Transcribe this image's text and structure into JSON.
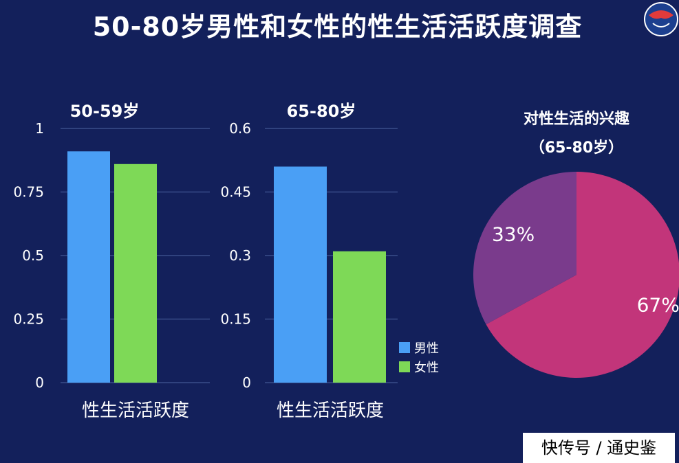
{
  "page": {
    "title": "50-80岁男性和女性的性生活活跃度调查",
    "watermark": "快传号 / 通史鉴",
    "logo_icon": "logo-emblem-icon"
  },
  "colors": {
    "background": "#13205b",
    "male": "#4a9ff5",
    "female": "#7ed957",
    "pie_large": "#c2357a",
    "pie_small": "#7a3b8c",
    "grid": "#3a4d8a"
  },
  "chart_data": [
    {
      "type": "bar",
      "title": "50-59岁",
      "xlabel": "性生活活跃度",
      "categories": [
        "性生活活跃度"
      ],
      "series": [
        {
          "name": "男性",
          "values": [
            0.91
          ]
        },
        {
          "name": "女性",
          "values": [
            0.86
          ]
        }
      ],
      "ylim": [
        0,
        1
      ],
      "yticks": [
        "0",
        "0.25",
        "0.5",
        "0.75",
        "1"
      ],
      "grid": true
    },
    {
      "type": "bar",
      "title": "65-80岁",
      "xlabel": "性生活活跃度",
      "categories": [
        "性生活活跃度"
      ],
      "series": [
        {
          "name": "男性",
          "values": [
            0.51
          ]
        },
        {
          "name": "女性",
          "values": [
            0.31
          ]
        }
      ],
      "ylim": [
        0,
        0.6
      ],
      "yticks": [
        "0",
        "0.15",
        "0.3",
        "0.45",
        "0.6"
      ],
      "grid": true,
      "legend": {
        "placement": "bottom-right",
        "entries": [
          "男性",
          "女性"
        ]
      }
    },
    {
      "type": "pie",
      "title": "对性生活的兴趣",
      "subtitle": "（65-80岁）",
      "slices": [
        {
          "label": "67%",
          "value": 67
        },
        {
          "label": "33%",
          "value": 33
        }
      ]
    }
  ]
}
